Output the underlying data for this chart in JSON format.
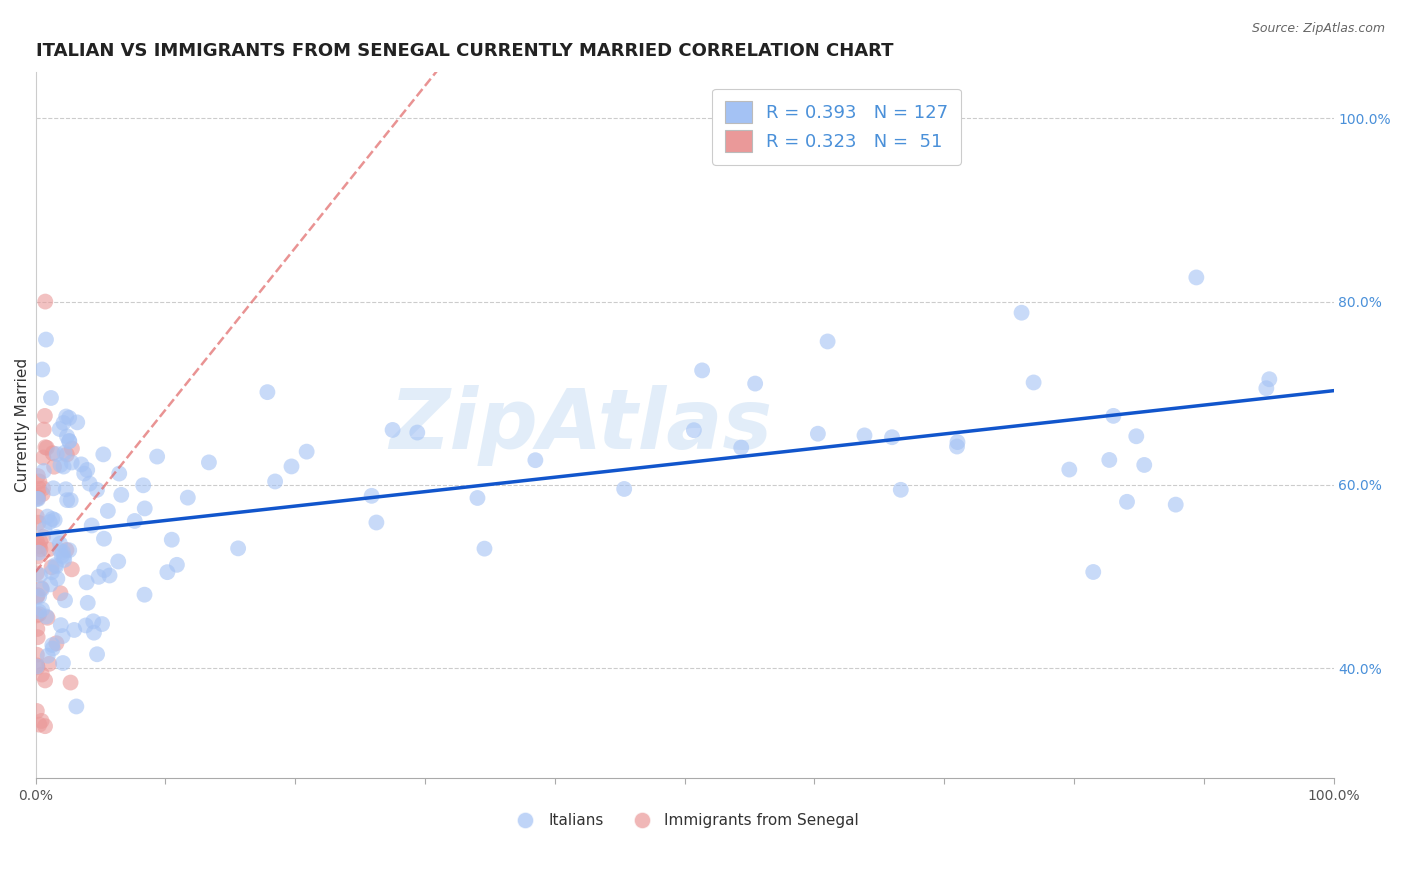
{
  "title": "ITALIAN VS IMMIGRANTS FROM SENEGAL CURRENTLY MARRIED CORRELATION CHART",
  "source": "Source: ZipAtlas.com",
  "ylabel": "Currently Married",
  "watermark": "ZipAtlas",
  "legend_labels": [
    "Italians",
    "Immigrants from Senegal"
  ],
  "blue_R": 0.393,
  "blue_N": 127,
  "pink_R": 0.323,
  "pink_N": 51,
  "blue_color": "#a4c2f4",
  "pink_color": "#ea9999",
  "blue_line_color": "#1155cc",
  "pink_line_color": "#e06666",
  "xlim": [
    0.0,
    1.0
  ],
  "ylim": [
    0.28,
    1.05
  ],
  "right_yticks": [
    0.4,
    0.6,
    0.8,
    1.0
  ],
  "right_yticklabels": [
    "40.0%",
    "60.0%",
    "80.0%",
    "100.0%"
  ],
  "grid_color": "#cccccc",
  "background_color": "#ffffff",
  "title_fontsize": 13,
  "axis_label_fontsize": 11
}
